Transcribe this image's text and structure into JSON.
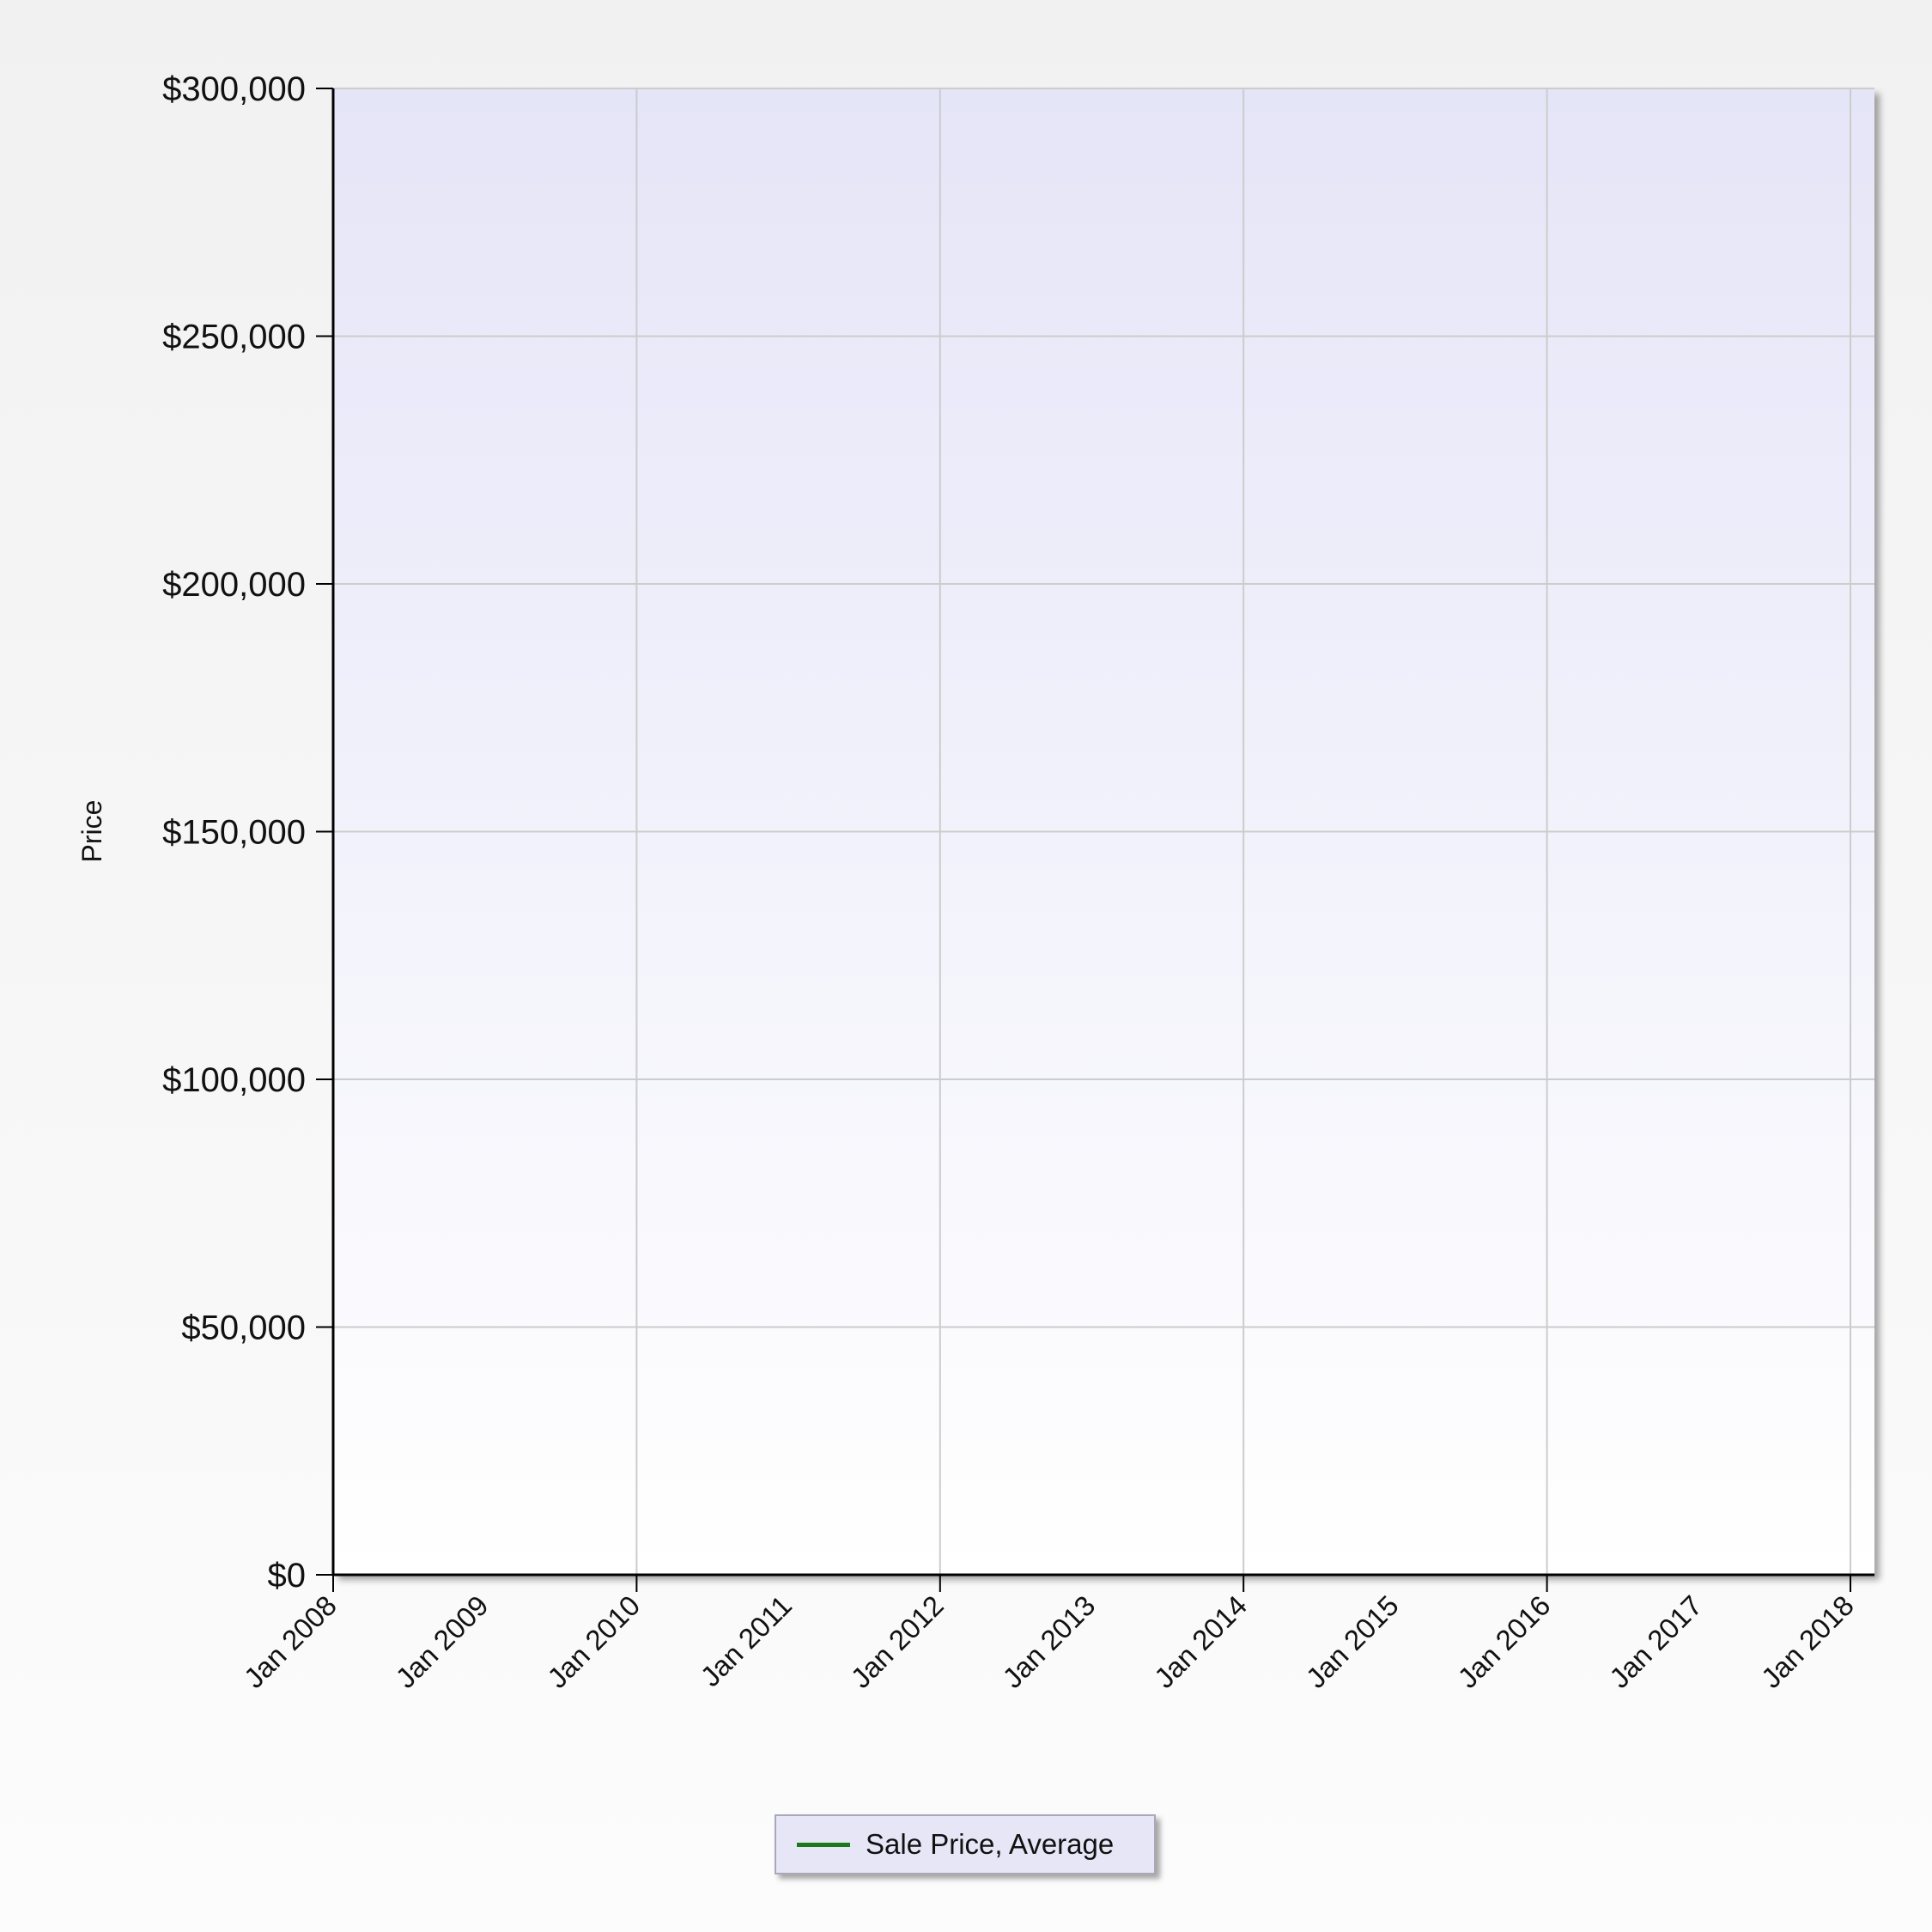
{
  "chart_data": {
    "type": "line",
    "title": "",
    "xlabel": "",
    "ylabel": "Price",
    "x_tick_labels": [
      "Jan 2008",
      "Jan 2009",
      "Jan 2010",
      "Jan 2011",
      "Jan 2012",
      "Jan 2013",
      "Jan 2014",
      "Jan 2015",
      "Jan 2016",
      "Jan 2017",
      "Jan 2018"
    ],
    "xlim": [
      "2008-01",
      "2018-01"
    ],
    "y_tick_labels": [
      "$0",
      "$50,000",
      "$100,000",
      "$150,000",
      "$200,000",
      "$250,000",
      "$300,000"
    ],
    "y_ticks": [
      0,
      50000,
      100000,
      150000,
      200000,
      250000,
      300000
    ],
    "ylim": [
      0,
      300000
    ],
    "grid": true,
    "legend_position": "bottom-center",
    "series": [
      {
        "name": "Sale Price, Average",
        "color": "#1a7a1a",
        "values": []
      }
    ]
  },
  "colors": {
    "plot_top": "#e5e5f8",
    "plot_bottom": "#ffffff",
    "grid": "#cccccc",
    "axis": "#000000"
  }
}
